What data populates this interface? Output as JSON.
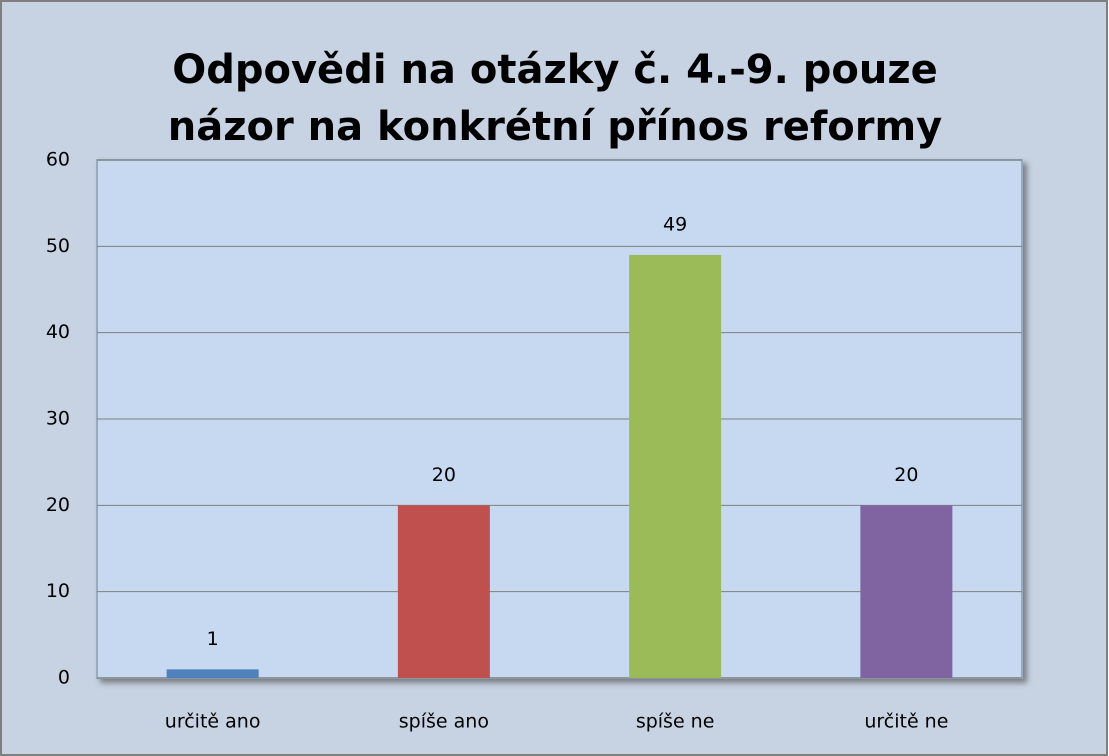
{
  "chart_data": {
    "type": "bar",
    "title": [
      "Odpovědi na otázky č. 4.-9. pouze",
      "názor na konkrétní přínos reformy"
    ],
    "categories": [
      "určitě ano",
      "spíše ano",
      "spíše ne",
      "určitě ne"
    ],
    "values": [
      1,
      20,
      49,
      20
    ],
    "colors": [
      "#4f81bd",
      "#c0504d",
      "#9bbb59",
      "#8064a2"
    ],
    "ylim": [
      0,
      60
    ],
    "yticks": [
      0,
      10,
      20,
      30,
      40,
      50,
      60
    ],
    "grid": true,
    "data_labels": true
  }
}
